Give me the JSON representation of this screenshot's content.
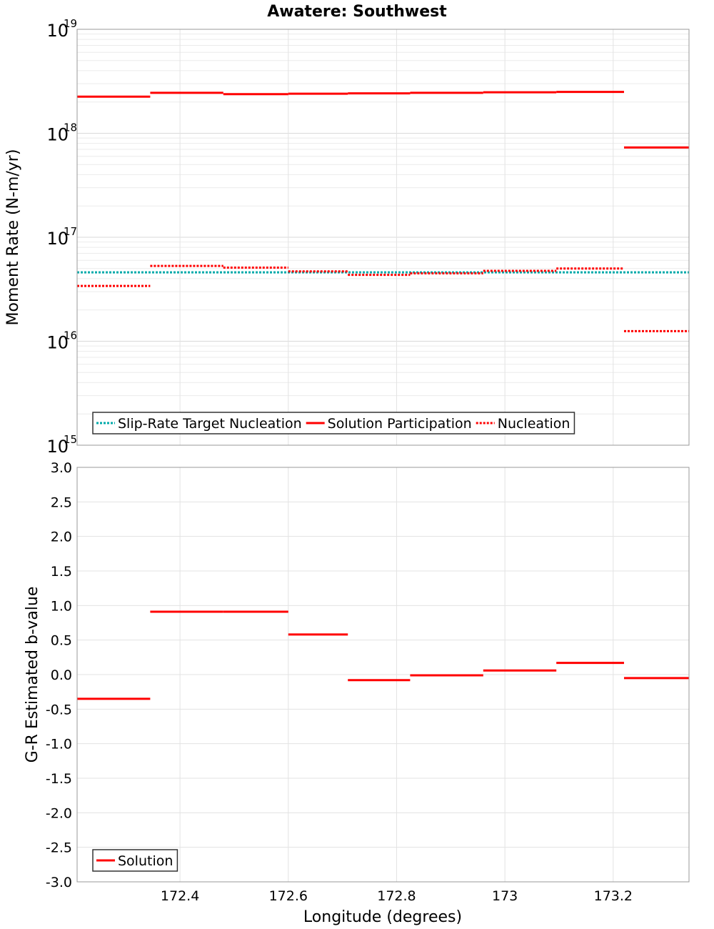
{
  "chart_data": [
    {
      "type": "line",
      "title": "Awatere: Southwest",
      "ylabel": "Moment Rate (N-m/yr)",
      "yscale": "log",
      "ylim": [
        1000000000000000.0,
        1e+19
      ],
      "xlim": [
        172.21,
        173.34
      ],
      "y_ticks": [
        {
          "base": "10",
          "exp": "15",
          "value": 1000000000000000.0
        },
        {
          "base": "10",
          "exp": "16",
          "value": 1e+16
        },
        {
          "base": "10",
          "exp": "17",
          "value": 1e+17
        },
        {
          "base": "10",
          "exp": "18",
          "value": 1e+18
        },
        {
          "base": "10",
          "exp": "19",
          "value": 1e+19
        }
      ],
      "grid": true,
      "legend_position": "bottom-left",
      "series": [
        {
          "name": "Slip-Rate Target Nucleation",
          "color": "#00aaaa",
          "style": "dotted",
          "segments": [
            {
              "x": [
                172.21,
                173.34
              ],
              "y": 4.6e+16
            }
          ]
        },
        {
          "name": "Solution Participation",
          "color": "#ff0000",
          "style": "solid",
          "segments": [
            {
              "x": [
                172.21,
                172.345
              ],
              "y": 2.25e+18
            },
            {
              "x": [
                172.345,
                172.48
              ],
              "y": 2.45e+18
            },
            {
              "x": [
                172.48,
                172.6
              ],
              "y": 2.38e+18
            },
            {
              "x": [
                172.6,
                172.71
              ],
              "y": 2.4e+18
            },
            {
              "x": [
                172.71,
                172.825
              ],
              "y": 2.42e+18
            },
            {
              "x": [
                172.825,
                172.96
              ],
              "y": 2.45e+18
            },
            {
              "x": [
                172.96,
                173.095
              ],
              "y": 2.48e+18
            },
            {
              "x": [
                173.095,
                173.22
              ],
              "y": 2.5e+18
            },
            {
              "x": [
                173.22,
                173.34
              ],
              "y": 7.3e+17
            }
          ]
        },
        {
          "name": "Nucleation",
          "color": "#ff0000",
          "style": "dotted",
          "segments": [
            {
              "x": [
                172.21,
                172.345
              ],
              "y": 3.4e+16
            },
            {
              "x": [
                172.345,
                172.48
              ],
              "y": 5.3e+16
            },
            {
              "x": [
                172.48,
                172.6
              ],
              "y": 5.1e+16
            },
            {
              "x": [
                172.6,
                172.71
              ],
              "y": 4.7e+16
            },
            {
              "x": [
                172.71,
                172.825
              ],
              "y": 4.35e+16
            },
            {
              "x": [
                172.825,
                172.96
              ],
              "y": 4.5e+16
            },
            {
              "x": [
                172.96,
                173.095
              ],
              "y": 4.75e+16
            },
            {
              "x": [
                173.095,
                173.22
              ],
              "y": 5e+16
            },
            {
              "x": [
                173.22,
                173.34
              ],
              "y": 1.25e+16
            }
          ]
        }
      ]
    },
    {
      "type": "line",
      "xlabel": "Longitude (degrees)",
      "ylabel": "G-R Estimated b-value",
      "ylim": [
        -3.0,
        3.0
      ],
      "xlim": [
        172.21,
        173.34
      ],
      "x_ticks": [
        {
          "label": "172.4",
          "value": 172.4
        },
        {
          "label": "172.6",
          "value": 172.6
        },
        {
          "label": "172.8",
          "value": 172.8
        },
        {
          "label": "173",
          "value": 173.0
        },
        {
          "label": "173.2",
          "value": 173.2
        }
      ],
      "y_ticks": [
        {
          "label": "3.0",
          "value": 3.0
        },
        {
          "label": "2.5",
          "value": 2.5
        },
        {
          "label": "2.0",
          "value": 2.0
        },
        {
          "label": "1.5",
          "value": 1.5
        },
        {
          "label": "1.0",
          "value": 1.0
        },
        {
          "label": "0.5",
          "value": 0.5
        },
        {
          "label": "0.0",
          "value": 0.0
        },
        {
          "label": "-0.5",
          "value": -0.5
        },
        {
          "label": "-1.0",
          "value": -1.0
        },
        {
          "label": "-1.5",
          "value": -1.5
        },
        {
          "label": "-2.0",
          "value": -2.0
        },
        {
          "label": "-2.5",
          "value": -2.5
        },
        {
          "label": "-3.0",
          "value": -3.0
        }
      ],
      "grid": true,
      "legend_position": "bottom-left",
      "series": [
        {
          "name": "Solution",
          "color": "#ff0000",
          "style": "solid",
          "segments": [
            {
              "x": [
                172.21,
                172.345
              ],
              "y": -0.35
            },
            {
              "x": [
                172.345,
                172.48
              ],
              "y": 0.91
            },
            {
              "x": [
                172.48,
                172.6
              ],
              "y": 0.91
            },
            {
              "x": [
                172.6,
                172.71
              ],
              "y": 0.58
            },
            {
              "x": [
                172.71,
                172.825
              ],
              "y": -0.08
            },
            {
              "x": [
                172.825,
                172.96
              ],
              "y": -0.01
            },
            {
              "x": [
                172.96,
                173.095
              ],
              "y": 0.06
            },
            {
              "x": [
                173.095,
                173.22
              ],
              "y": 0.17
            },
            {
              "x": [
                173.22,
                173.34
              ],
              "y": -0.05
            }
          ]
        }
      ]
    }
  ]
}
